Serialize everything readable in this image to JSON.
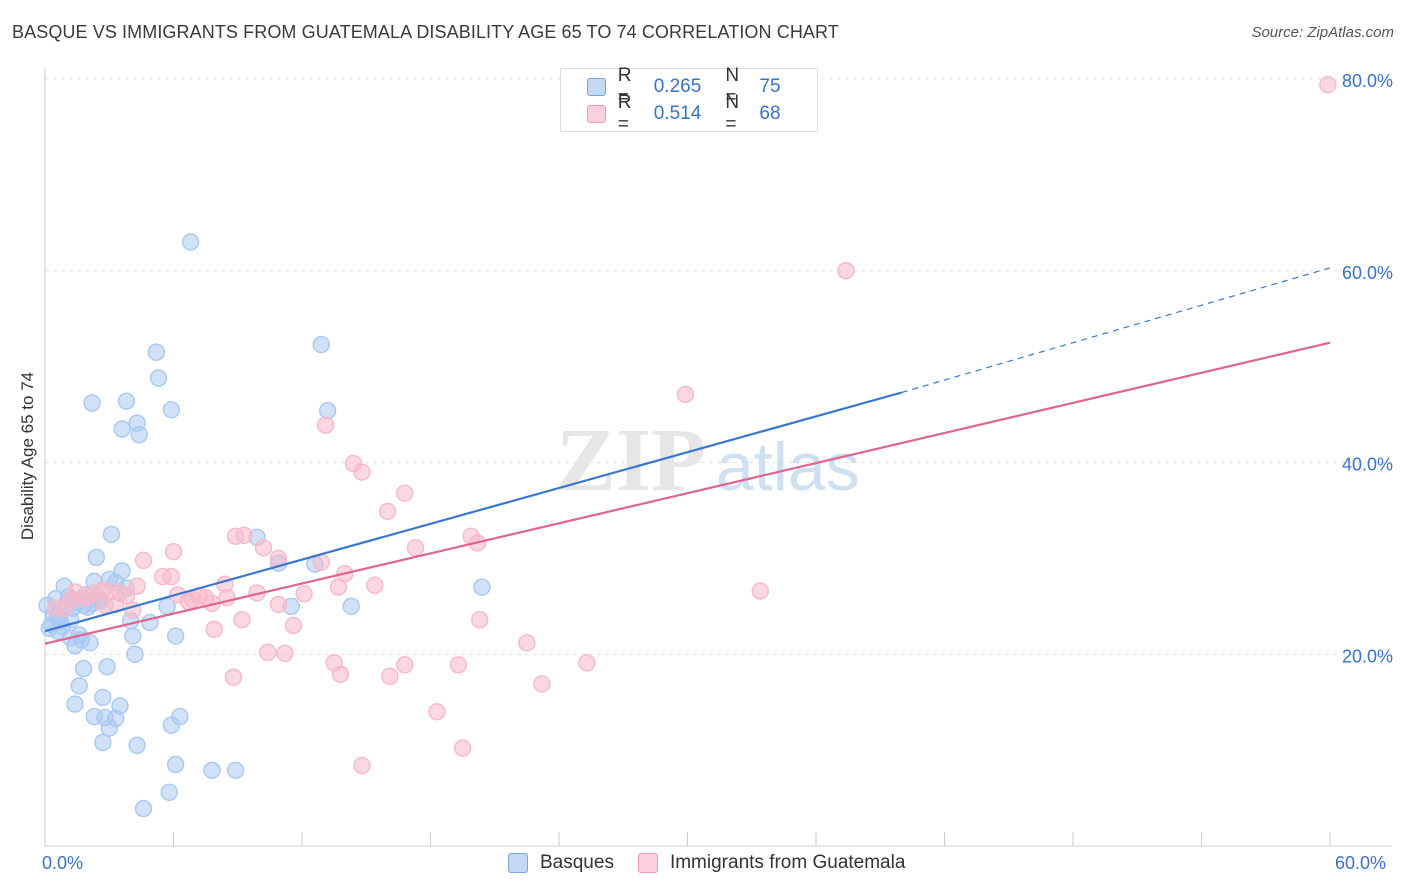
{
  "title": "BASQUE VS IMMIGRANTS FROM GUATEMALA DISABILITY AGE 65 TO 74 CORRELATION CHART",
  "source": "Source: ZipAtlas.com",
  "watermark": {
    "zip": "ZIP",
    "atlas": "atlas"
  },
  "legend": {
    "rows": [
      {
        "r_label": "R =",
        "r_value": "0.265",
        "n_label": "N =",
        "n_value": "75",
        "color": "#a9c8f2"
      },
      {
        "r_label": "R =",
        "r_value": "0.514",
        "n_label": "N =",
        "n_value": "68",
        "color": "#f7b8c9"
      }
    ]
  },
  "bottom_legend": [
    {
      "label": "Basques",
      "color": "#a9c8f2"
    },
    {
      "label": "Immigrants from Guatemala",
      "color": "#f7b8c9"
    }
  ],
  "chart_data": {
    "type": "scatter",
    "title": "BASQUE VS IMMIGRANTS FROM GUATEMALA DISABILITY AGE 65 TO 74 CORRELATION CHART",
    "xlabel": "",
    "ylabel": "Disability Age 65 to 74",
    "xlim": [
      0,
      60
    ],
    "ylim": [
      0,
      82
    ],
    "x_tick_labels": [
      "0.0%",
      "60.0%"
    ],
    "y_ticks": [
      20,
      40,
      60,
      80
    ],
    "y_tick_labels": [
      "20.0%",
      "40.0%",
      "60.0%",
      "80.0%"
    ],
    "grid": true,
    "legend_position": "top-center",
    "series": [
      {
        "name": "Basques",
        "color": "#3a78d0",
        "fill": "#a9c8f2",
        "trend": {
          "x": [
            0,
            40
          ],
          "y": [
            22.4,
            47.3
          ],
          "dashed_to": [
            60,
            60.3
          ]
        },
        "points": [
          [
            6.8,
            63
          ],
          [
            13.2,
            45.4
          ],
          [
            12.9,
            52.3
          ],
          [
            5.2,
            51.5
          ],
          [
            5.3,
            48.8
          ],
          [
            3.8,
            46.4
          ],
          [
            2.2,
            46.2
          ],
          [
            3.6,
            43.5
          ],
          [
            4.3,
            44.1
          ],
          [
            4.4,
            42.9
          ],
          [
            5.9,
            45.5
          ],
          [
            0.4,
            24.2
          ],
          [
            0.5,
            25.8
          ],
          [
            0.7,
            23.5
          ],
          [
            0.9,
            27.1
          ],
          [
            1.0,
            25.2
          ],
          [
            1.1,
            26.0
          ],
          [
            1.2,
            23.6
          ],
          [
            1.3,
            24.8
          ],
          [
            1.5,
            25.4
          ],
          [
            1.6,
            22.0
          ],
          [
            1.7,
            21.5
          ],
          [
            1.8,
            25.1
          ],
          [
            2.0,
            24.9
          ],
          [
            2.2,
            25.3
          ],
          [
            2.3,
            27.6
          ],
          [
            2.4,
            30.1
          ],
          [
            2.5,
            25.8
          ],
          [
            0.2,
            22.7
          ],
          [
            0.3,
            23.1
          ],
          [
            0.6,
            22.4
          ],
          [
            0.8,
            22.9
          ],
          [
            1.4,
            20.9
          ],
          [
            2.1,
            21.2
          ],
          [
            3.0,
            27.8
          ],
          [
            3.1,
            32.5
          ],
          [
            3.3,
            27.5
          ],
          [
            3.6,
            28.7
          ],
          [
            3.8,
            26.9
          ],
          [
            4.0,
            23.5
          ],
          [
            5.7,
            25.0
          ],
          [
            9.9,
            32.2
          ],
          [
            10.9,
            29.5
          ],
          [
            11.5,
            25.0
          ],
          [
            12.6,
            29.4
          ],
          [
            14.3,
            25.0
          ],
          [
            20.4,
            27.0
          ],
          [
            4.1,
            21.9
          ],
          [
            4.2,
            20.0
          ],
          [
            6.1,
            21.9
          ],
          [
            1.8,
            18.5
          ],
          [
            1.6,
            16.7
          ],
          [
            1.4,
            14.8
          ],
          [
            2.3,
            13.5
          ],
          [
            2.7,
            15.5
          ],
          [
            2.8,
            13.4
          ],
          [
            3.0,
            12.3
          ],
          [
            3.3,
            13.3
          ],
          [
            3.5,
            14.6
          ],
          [
            2.7,
            10.8
          ],
          [
            4.3,
            10.5
          ],
          [
            5.9,
            12.6
          ],
          [
            6.3,
            13.5
          ],
          [
            2.9,
            18.7
          ],
          [
            6.1,
            8.5
          ],
          [
            7.8,
            7.9
          ],
          [
            8.9,
            7.9
          ],
          [
            5.8,
            5.6
          ],
          [
            4.6,
            3.9
          ],
          [
            0.6,
            23.9
          ],
          [
            1.9,
            26.2
          ],
          [
            0.1,
            25.1
          ],
          [
            1.2,
            21.7
          ],
          [
            2.6,
            25.6
          ],
          [
            4.9,
            23.3
          ]
        ]
      },
      {
        "name": "Immigrants from Guatemala",
        "color": "#e0648e",
        "fill": "#f7b8c9",
        "trend": {
          "x": [
            0,
            60
          ],
          "y": [
            21.1,
            52.5
          ]
        },
        "points": [
          [
            59.9,
            79.4
          ],
          [
            37.4,
            60
          ],
          [
            29.9,
            47.1
          ],
          [
            13.1,
            43.9
          ],
          [
            14.4,
            39.9
          ],
          [
            14.8,
            39.0
          ],
          [
            16.8,
            36.8
          ],
          [
            16.0,
            34.9
          ],
          [
            19.9,
            32.3
          ],
          [
            20.2,
            31.6
          ],
          [
            17.3,
            31.1
          ],
          [
            8.9,
            32.3
          ],
          [
            9.3,
            32.4
          ],
          [
            10.2,
            31.1
          ],
          [
            10.9,
            30.0
          ],
          [
            12.9,
            29.6
          ],
          [
            6.0,
            30.7
          ],
          [
            4.6,
            29.8
          ],
          [
            5.5,
            28.1
          ],
          [
            5.9,
            28.1
          ],
          [
            6.2,
            26.2
          ],
          [
            6.7,
            25.5
          ],
          [
            7.2,
            26.1
          ],
          [
            7.5,
            25.9
          ],
          [
            7.8,
            25.3
          ],
          [
            8.4,
            27.3
          ],
          [
            8.5,
            25.9
          ],
          [
            9.9,
            26.4
          ],
          [
            10.9,
            25.2
          ],
          [
            11.6,
            23.0
          ],
          [
            11.2,
            20.1
          ],
          [
            10.4,
            20.2
          ],
          [
            13.7,
            27.0
          ],
          [
            14.0,
            28.4
          ],
          [
            15.4,
            27.2
          ],
          [
            4.3,
            27.1
          ],
          [
            3.8,
            26.1
          ],
          [
            3.3,
            25.2
          ],
          [
            3.0,
            26.5
          ],
          [
            2.7,
            26.7
          ],
          [
            2.3,
            26.4
          ],
          [
            2.0,
            26.0
          ],
          [
            1.7,
            25.8
          ],
          [
            1.4,
            26.5
          ],
          [
            1.2,
            25.7
          ],
          [
            0.9,
            24.8
          ],
          [
            0.5,
            24.8
          ],
          [
            3.5,
            26.4
          ],
          [
            4.1,
            24.6
          ],
          [
            7.9,
            22.6
          ],
          [
            9.2,
            23.6
          ],
          [
            13.5,
            19.1
          ],
          [
            13.8,
            17.9
          ],
          [
            16.1,
            17.7
          ],
          [
            16.8,
            18.9
          ],
          [
            18.3,
            14.0
          ],
          [
            19.3,
            18.9
          ],
          [
            19.5,
            10.2
          ],
          [
            20.3,
            23.6
          ],
          [
            22.5,
            21.2
          ],
          [
            23.2,
            16.9
          ],
          [
            25.3,
            19.1
          ],
          [
            33.4,
            26.6
          ],
          [
            8.8,
            17.6
          ],
          [
            14.8,
            8.4
          ],
          [
            6.9,
            25.7
          ],
          [
            12.1,
            26.3
          ],
          [
            2.8,
            25.1
          ]
        ]
      }
    ]
  }
}
